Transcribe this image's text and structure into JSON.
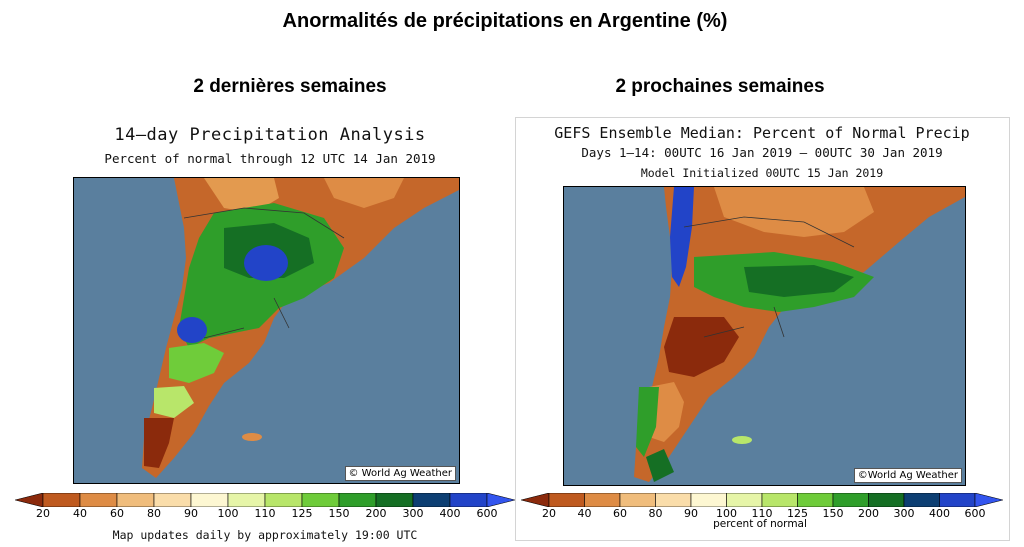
{
  "title": "Anormalités de précipitations en Argentine (%)",
  "left": {
    "section_title": "2 dernières semaines",
    "map_title": "14–day Precipitation Analysis",
    "map_subtitle": "Percent of normal through 12 UTC 14 Jan 2019",
    "credit": "© World Ag Weather",
    "footer": "Map updates daily by approximately 19:00 UTC"
  },
  "right": {
    "section_title": "2 prochaines semaines",
    "map_title": "GEFS Ensemble Median: Percent of Normal Precip",
    "map_subtitle": "Days 1–14: 00UTC 16 Jan 2019 – 00UTC 30 Jan 2019",
    "model_init": "Model Initialized 00UTC 15 Jan 2019",
    "credit": "©World Ag Weather",
    "footer": "percent of normal"
  },
  "legend": {
    "ticks": [
      "20",
      "40",
      "60",
      "80",
      "90",
      "100",
      "110",
      "125",
      "150",
      "200",
      "300",
      "400",
      "600"
    ],
    "colors": [
      "#8b2a0c",
      "#bf5a1f",
      "#de8c45",
      "#f0bd7c",
      "#faddaa",
      "#fdf7d2",
      "#e6f5a8",
      "#b8e66a",
      "#6fcc3a",
      "#2f9e2a",
      "#156f24",
      "#0d3f73",
      "#2244c8",
      "#3355ee"
    ]
  },
  "colors": {
    "ocean": "#5a7f9e",
    "land_dry": "#c5672a",
    "land_wet": "#2f9e2a",
    "land_verywet": "#2244c8"
  }
}
